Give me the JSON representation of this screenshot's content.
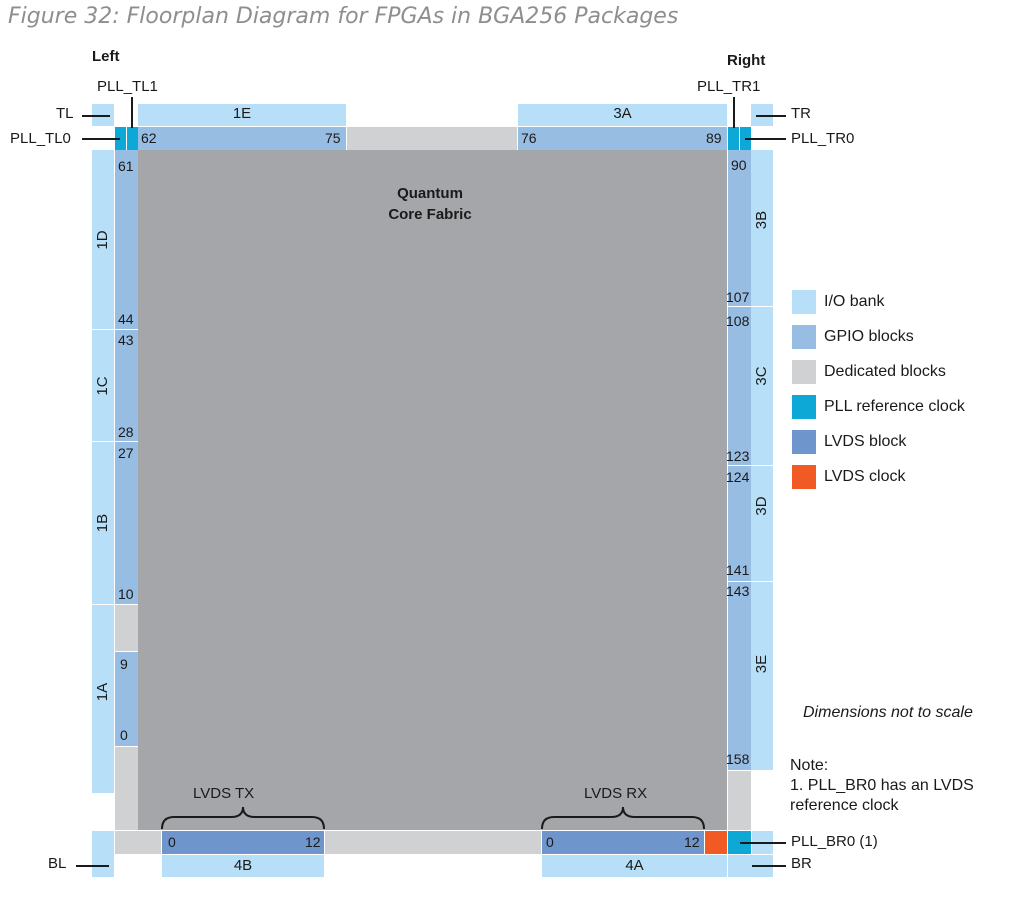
{
  "title": "Figure 32: Floorplan Diagram for FPGAs in BGA256 Packages",
  "side_labels": {
    "left": "Left",
    "right": "Right"
  },
  "core": {
    "line1": "Quantum",
    "line2": "Core Fabric"
  },
  "corner_labels": {
    "tl": "TL",
    "tr": "TR",
    "bl": "BL",
    "br": "BR"
  },
  "pll_labels": {
    "tl1": "PLL_TL1",
    "tl0": "PLL_TL0",
    "tr1": "PLL_TR1",
    "tr0": "PLL_TR0",
    "br0": "PLL_BR0 (1)"
  },
  "banks": {
    "1E": "1E",
    "3A": "3A",
    "1D": "1D",
    "1C": "1C",
    "1B": "1B",
    "1A": "1A",
    "3B": "3B",
    "3C": "3C",
    "3D": "3D",
    "3E": "3E",
    "4B": "4B",
    "4A": "4A"
  },
  "top_numbers": {
    "n62": "62",
    "n75": "75",
    "n76": "76",
    "n89": "89"
  },
  "left_numbers": {
    "n61": "61",
    "n44": "44",
    "n43": "43",
    "n28": "28",
    "n27": "27",
    "n10": "10",
    "n9": "9",
    "n0": "0"
  },
  "right_numbers": {
    "n90": "90",
    "n107": "107",
    "n108": "108",
    "n123": "123",
    "n124": "124",
    "n141": "141",
    "n143": "143",
    "n158": "158"
  },
  "lvds": {
    "tx_label": "LVDS TX",
    "rx_label": "LVDS RX",
    "tx_start": "0",
    "tx_end": "12",
    "rx_start": "0",
    "rx_end": "12"
  },
  "legend": [
    {
      "label": "I/O bank",
      "color": "#b7e0f8"
    },
    {
      "label": "GPIO blocks",
      "color": "#98bde3"
    },
    {
      "label": "Dedicated blocks",
      "color": "#d0d1d3"
    },
    {
      "label": "PLL reference clock",
      "color": "#0ea8d6"
    },
    {
      "label": "LVDS block",
      "color": "#6f95cd"
    },
    {
      "label": "LVDS clock",
      "color": "#f15a24"
    }
  ],
  "scale_note": "Dimensions not to scale",
  "note": {
    "line1": "Note:",
    "line2": "1. PLL_BR0 has an LVDS",
    "line3": "reference clock"
  }
}
